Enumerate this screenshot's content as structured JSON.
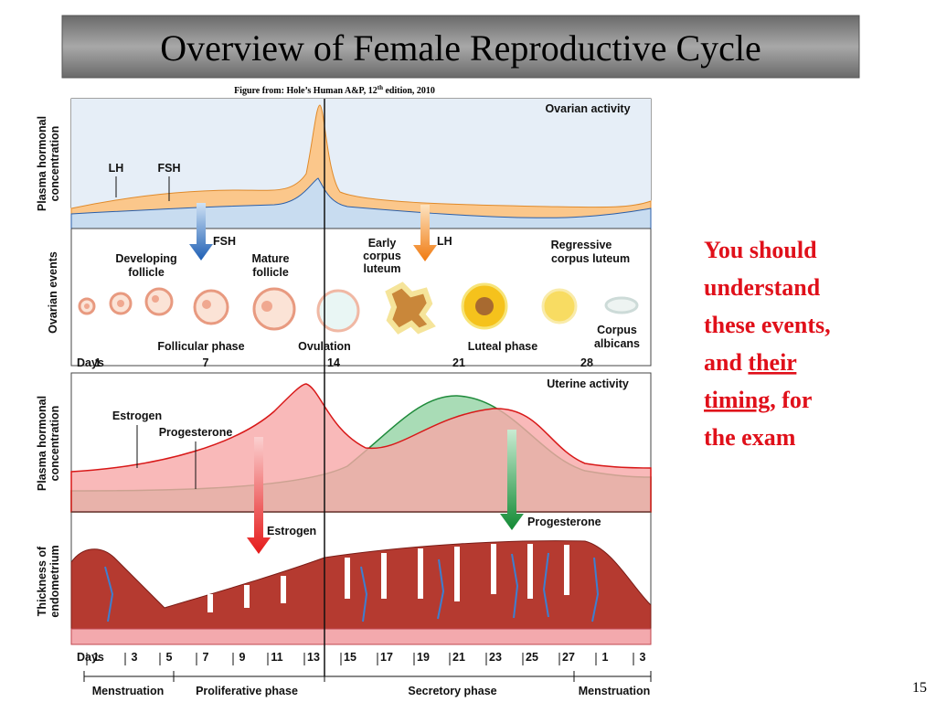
{
  "header": {
    "title": "Overview of Female Reproductive Cycle",
    "caption": [
      "Figure from: Hole’s Human A&P, 12",
      "th",
      " edition, 2010"
    ]
  },
  "figure": {
    "ovarian_panel": {
      "heading": "Ovarian activity",
      "axis_hormone": [
        "Plasma hormonal",
        "concentration"
      ],
      "axis_events": "Ovarian events",
      "curve_labels": [
        "LH",
        "FSH"
      ],
      "arrows": [
        "FSH",
        "LH"
      ],
      "events": {
        "developing": [
          "Developing",
          "follicle"
        ],
        "mature": [
          "Mature",
          "follicle"
        ],
        "early_cl": [
          "Early",
          "corpus",
          "luteum"
        ],
        "regressive_cl": [
          "Regressive",
          "corpus luteum"
        ],
        "albicans": [
          "Corpus",
          "albicans"
        ]
      },
      "phases": [
        "Follicular phase",
        "Ovulation",
        "Luteal phase"
      ],
      "days_label": "Days",
      "days": [
        "1",
        "7",
        "14",
        "21",
        "28"
      ]
    },
    "uterine_panel": {
      "heading": "Uterine activity",
      "axis_hormone": [
        "Plasma hormonal",
        "concentration"
      ],
      "axis_endometrium": [
        "Thickness of",
        "endometrium"
      ],
      "curve_labels": [
        "Estrogen",
        "Progesterone"
      ],
      "arrows": [
        "Estrogen",
        "Progesterone"
      ],
      "days_label": "Days",
      "days": [
        "1",
        "3",
        "5",
        "7",
        "9",
        "11",
        "13",
        "15",
        "17",
        "19",
        "21",
        "23",
        "25",
        "27",
        "1",
        "3"
      ],
      "phases": [
        "Menstruation",
        "Proliferative phase",
        "Secretory phase",
        "Menstruation"
      ]
    }
  },
  "side_note": {
    "lines": [
      [
        "You should"
      ],
      [
        "understand"
      ],
      [
        "these events,"
      ],
      [
        "and ",
        "their"
      ],
      [
        "timing",
        ", for"
      ],
      [
        "the exam"
      ]
    ]
  },
  "page_number": "15"
}
